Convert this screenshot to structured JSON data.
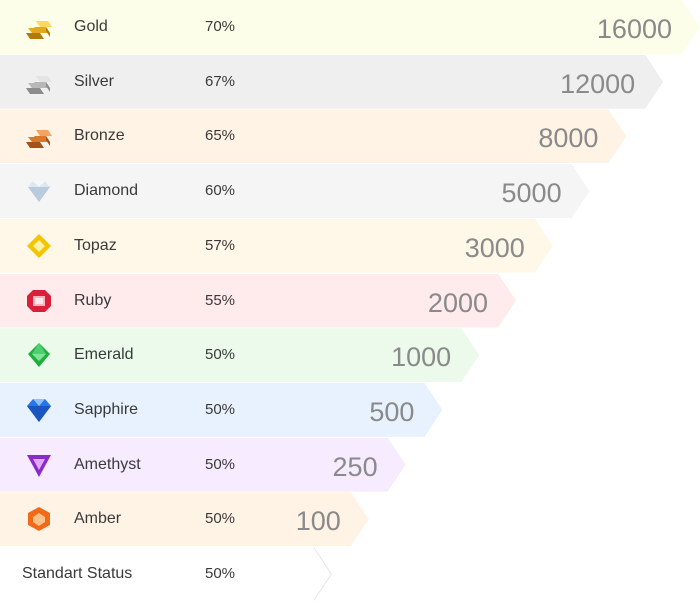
{
  "tiers": [
    {
      "key": "gold",
      "label": "Gold",
      "percent": "70%",
      "threshold": "16000",
      "bg": "#fdfee9",
      "icon": "gold-bar-icon",
      "color": "#e2a91f"
    },
    {
      "key": "silver",
      "label": "Silver",
      "percent": "67%",
      "threshold": "12000",
      "bg": "#efefef",
      "icon": "silver-bar-icon",
      "color": "#b8b8b8"
    },
    {
      "key": "bronze",
      "label": "Bronze",
      "percent": "65%",
      "threshold": "8000",
      "bg": "#fff3e6",
      "icon": "bronze-bar-icon",
      "color": "#d97a2b"
    },
    {
      "key": "diamond",
      "label": "Diamond",
      "percent": "60%",
      "threshold": "5000",
      "bg": "#f5f5f5",
      "icon": "diamond-icon",
      "color": "#c9d8e6"
    },
    {
      "key": "topaz",
      "label": "Topaz",
      "percent": "57%",
      "threshold": "3000",
      "bg": "#fff8e8",
      "icon": "topaz-icon",
      "color": "#f5c400"
    },
    {
      "key": "ruby",
      "label": "Ruby",
      "percent": "55%",
      "threshold": "2000",
      "bg": "#ffebeb",
      "icon": "ruby-icon",
      "color": "#d8203a"
    },
    {
      "key": "emerald",
      "label": "Emerald",
      "percent": "50%",
      "threshold": "1000",
      "bg": "#ebfaeb",
      "icon": "emerald-icon",
      "color": "#1fae3f"
    },
    {
      "key": "sapphire",
      "label": "Sapphire",
      "percent": "50%",
      "threshold": "500",
      "bg": "#e8f2ff",
      "icon": "sapphire-icon",
      "color": "#2a76e8"
    },
    {
      "key": "amethyst",
      "label": "Amethyst",
      "percent": "50%",
      "threshold": "250",
      "bg": "#f6ebff",
      "icon": "amethyst-icon",
      "color": "#8a2bc8"
    },
    {
      "key": "amber",
      "label": "Amber",
      "percent": "50%",
      "threshold": "100",
      "bg": "#fff3e6",
      "icon": "amber-icon",
      "color": "#f06a1a"
    },
    {
      "key": "standard",
      "label": "Standart Status",
      "percent": "50%",
      "threshold": "",
      "bg": "#ffffff",
      "icon": "",
      "color": "#e6e6e6"
    }
  ]
}
